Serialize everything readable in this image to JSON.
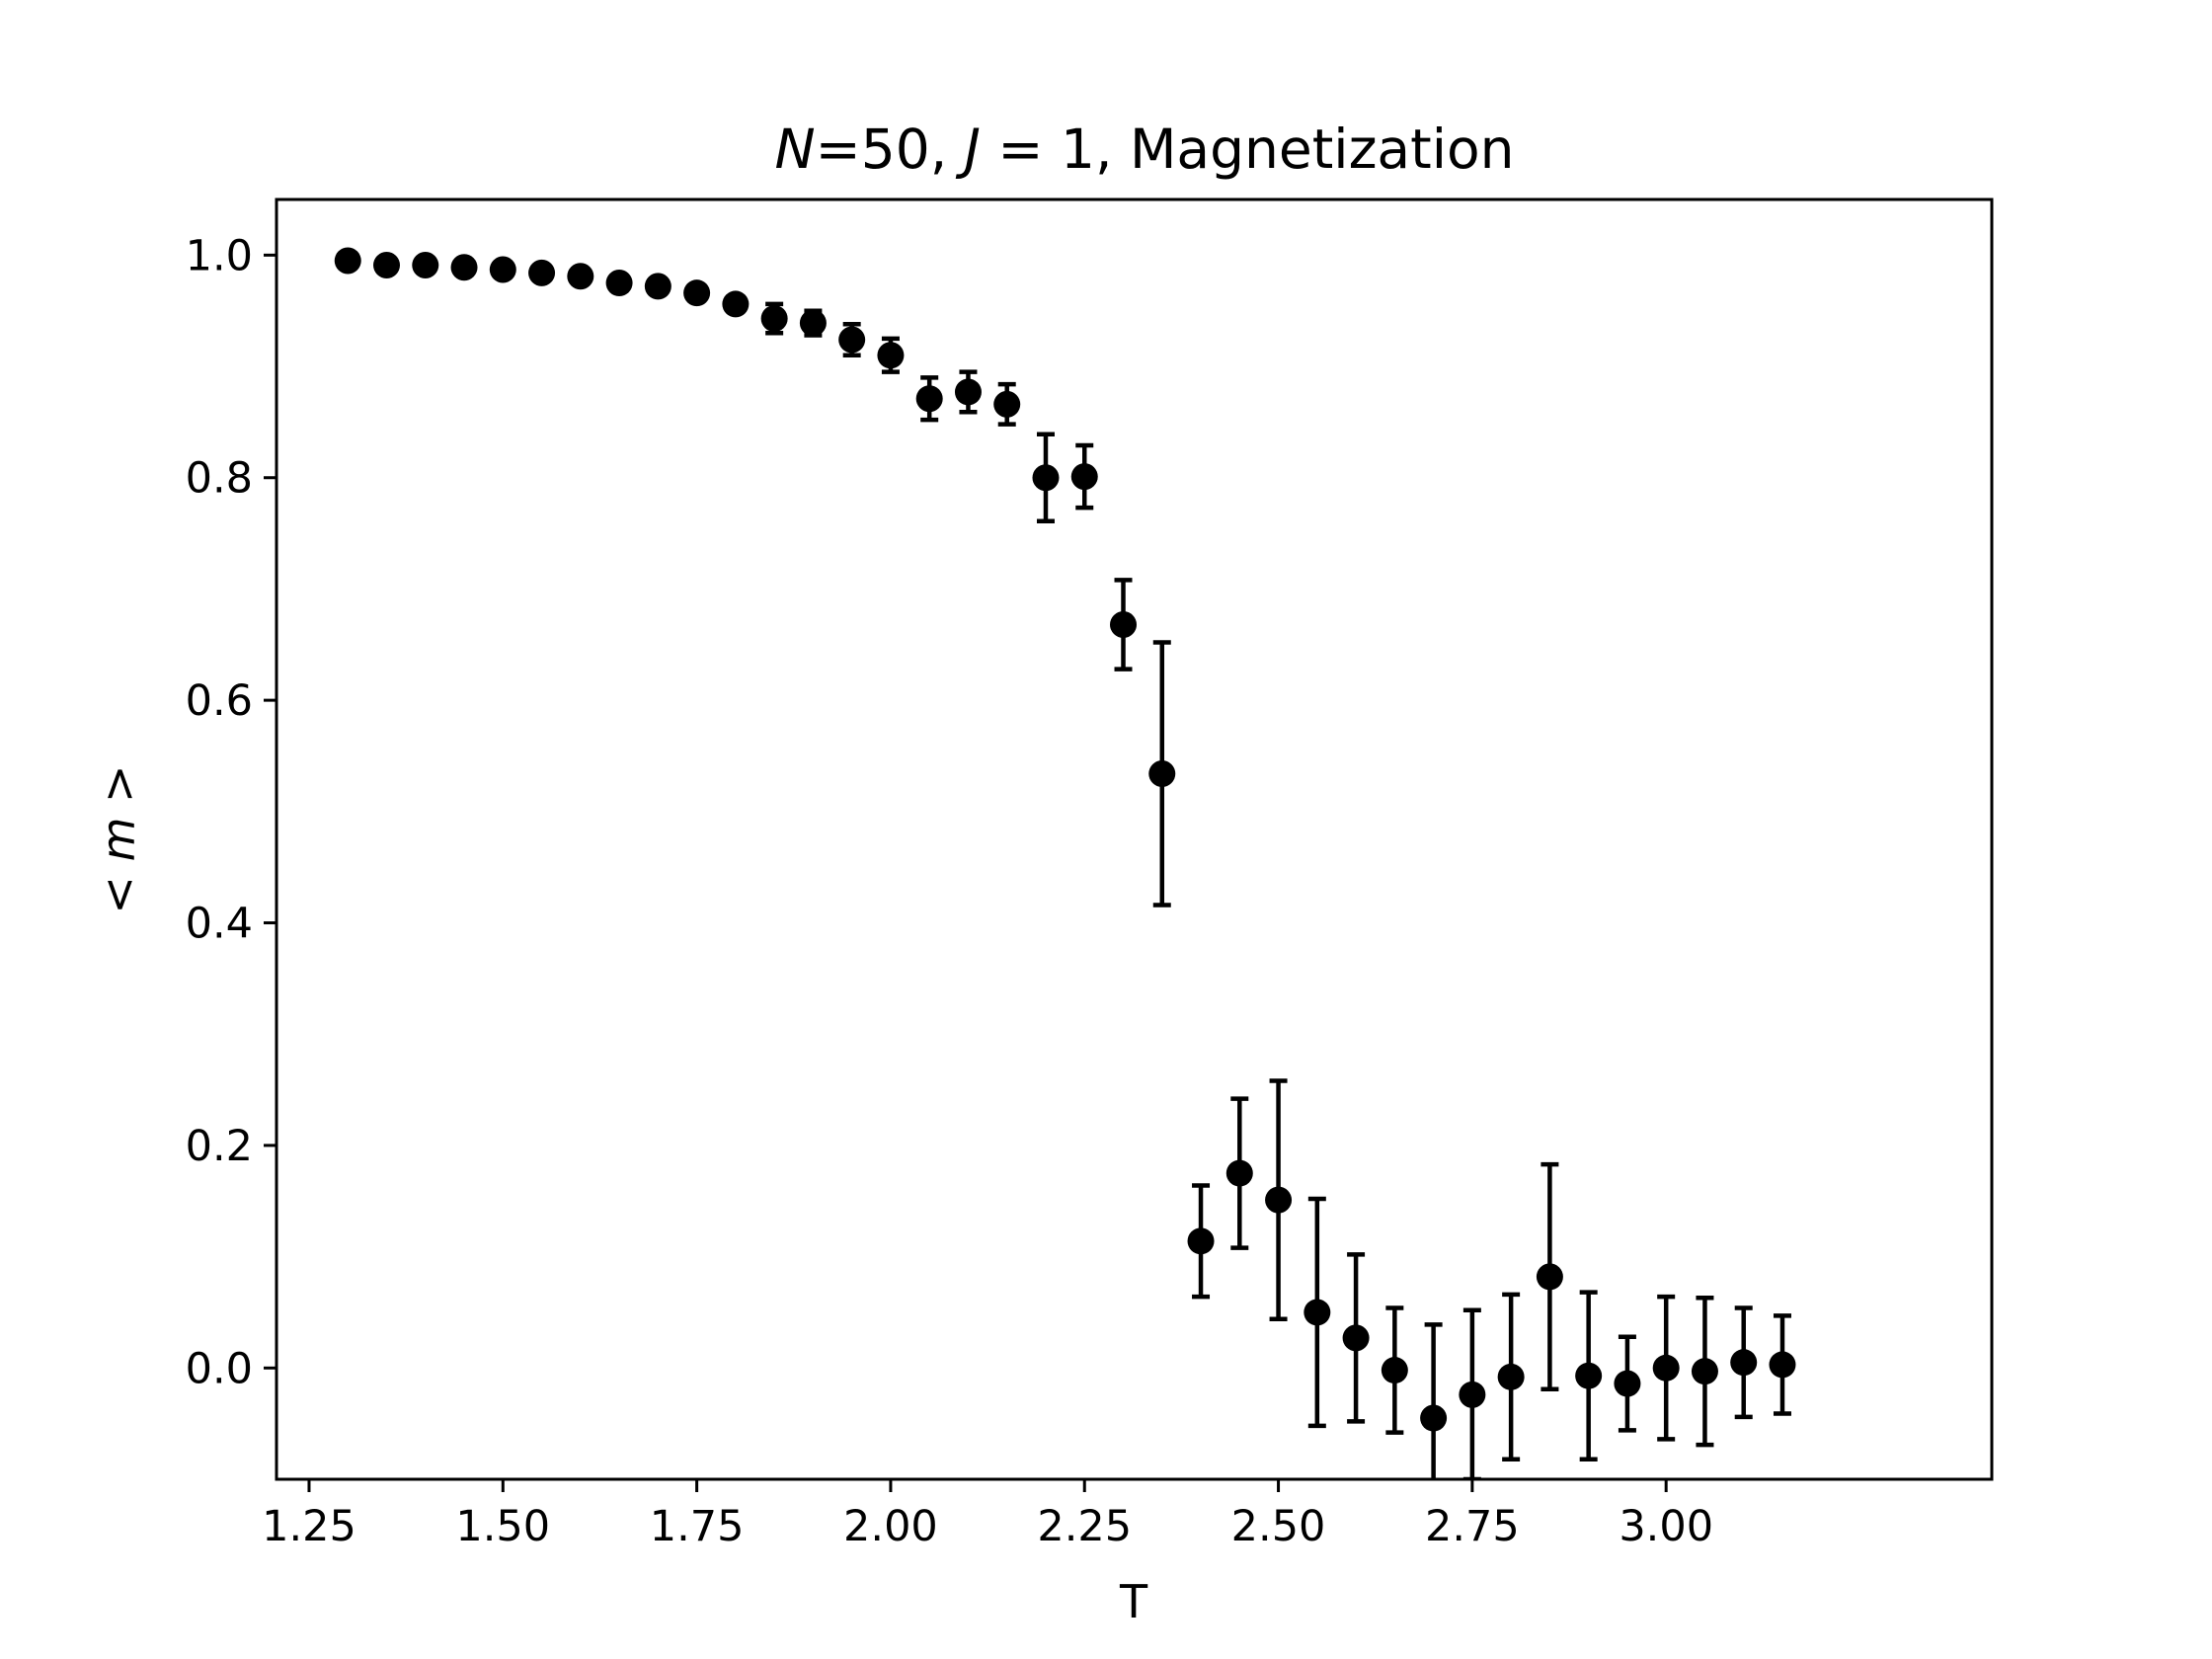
{
  "chart_data": {
    "type": "scatter",
    "title": {
      "n_symbol": "N",
      "n_eq": "=50, ",
      "j_symbol": "J",
      "j_eq": " = 1, ",
      "rest": "Magnetization"
    },
    "xlabel": "T",
    "ylabel": "< m >",
    "xlim": [
      1.208,
      3.42
    ],
    "ylim": [
      -0.1,
      1.05
    ],
    "xticks": [
      1.25,
      1.5,
      1.75,
      2.0,
      2.25,
      2.5,
      2.75,
      3.0
    ],
    "xtick_labels": [
      "1.25",
      "1.50",
      "1.75",
      "2.00",
      "2.25",
      "2.50",
      "2.75",
      "3.00"
    ],
    "yticks": [
      0.0,
      0.2,
      0.4,
      0.6,
      0.8,
      1.0
    ],
    "ytick_labels": [
      "0.0",
      "0.2",
      "0.4",
      "0.6",
      "0.8",
      "1.0"
    ],
    "grid": false,
    "legend": "none",
    "marker_color": "#000000",
    "series": [
      {
        "points": [
          {
            "x": 1.3,
            "y": 0.995,
            "err": 0.0
          },
          {
            "x": 1.35,
            "y": 0.991,
            "err": 0.0
          },
          {
            "x": 1.4,
            "y": 0.991,
            "err": 0.0
          },
          {
            "x": 1.45,
            "y": 0.989,
            "err": 0.0
          },
          {
            "x": 1.5,
            "y": 0.987,
            "err": 0.0
          },
          {
            "x": 1.55,
            "y": 0.984,
            "err": 0.0
          },
          {
            "x": 1.6,
            "y": 0.981,
            "err": 0.0
          },
          {
            "x": 1.65,
            "y": 0.975,
            "err": 0.0
          },
          {
            "x": 1.7,
            "y": 0.972,
            "err": 0.0
          },
          {
            "x": 1.75,
            "y": 0.966,
            "err": 0.0
          },
          {
            "x": 1.8,
            "y": 0.956,
            "err": 0.005
          },
          {
            "x": 1.85,
            "y": 0.943,
            "err": 0.013
          },
          {
            "x": 1.9,
            "y": 0.939,
            "err": 0.011
          },
          {
            "x": 1.95,
            "y": 0.924,
            "err": 0.014
          },
          {
            "x": 2.0,
            "y": 0.91,
            "err": 0.015
          },
          {
            "x": 2.05,
            "y": 0.871,
            "err": 0.019
          },
          {
            "x": 2.1,
            "y": 0.877,
            "err": 0.018
          },
          {
            "x": 2.15,
            "y": 0.866,
            "err": 0.018
          },
          {
            "x": 2.2,
            "y": 0.8,
            "err": 0.039
          },
          {
            "x": 2.25,
            "y": 0.801,
            "err": 0.028
          },
          {
            "x": 2.3,
            "y": 0.668,
            "err": 0.04
          },
          {
            "x": 2.35,
            "y": 0.534,
            "err": 0.118
          },
          {
            "x": 2.4,
            "y": 0.114,
            "err": 0.05
          },
          {
            "x": 2.45,
            "y": 0.175,
            "err": 0.067
          },
          {
            "x": 2.5,
            "y": 0.151,
            "err": 0.107
          },
          {
            "x": 2.55,
            "y": 0.05,
            "err": 0.102
          },
          {
            "x": 2.6,
            "y": 0.027,
            "err": 0.075
          },
          {
            "x": 2.65,
            "y": -0.002,
            "err": 0.056
          },
          {
            "x": 2.7,
            "y": -0.045,
            "err": 0.084
          },
          {
            "x": 2.75,
            "y": -0.024,
            "err": 0.076
          },
          {
            "x": 2.8,
            "y": -0.008,
            "err": 0.074
          },
          {
            "x": 2.85,
            "y": 0.082,
            "err": 0.101
          },
          {
            "x": 2.9,
            "y": -0.007,
            "err": 0.075
          },
          {
            "x": 2.95,
            "y": -0.014,
            "err": 0.042
          },
          {
            "x": 3.0,
            "y": 0.0,
            "err": 0.064
          },
          {
            "x": 3.05,
            "y": -0.003,
            "err": 0.066
          },
          {
            "x": 3.1,
            "y": 0.005,
            "err": 0.049
          },
          {
            "x": 3.15,
            "y": 0.003,
            "err": 0.044
          }
        ]
      }
    ]
  }
}
